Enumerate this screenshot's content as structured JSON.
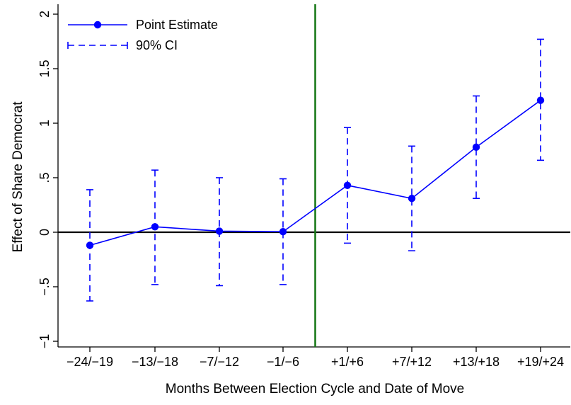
{
  "chart_data": {
    "type": "line",
    "categories": [
      "−24/−19",
      "−13/−18",
      "−7/−12",
      "−1/−6",
      "+1/+6",
      "+7/+12",
      "+13/+18",
      "+19/+24"
    ],
    "series": [
      {
        "name": "Point Estimate",
        "values": [
          -0.12,
          0.05,
          0.01,
          0.005,
          0.43,
          0.31,
          0.78,
          1.21
        ]
      }
    ],
    "ci": {
      "name": "90% CI",
      "lower": [
        -0.63,
        -0.48,
        -0.49,
        -0.48,
        -0.1,
        -0.17,
        0.31,
        0.66
      ],
      "upper": [
        0.39,
        0.57,
        0.5,
        0.49,
        0.96,
        0.79,
        1.25,
        1.77
      ]
    },
    "xlabel": "Months Between Election Cycle and Date of Move",
    "ylabel": "Effect of Share Democrat",
    "ylim": [
      -1.1,
      2.05
    ],
    "yticks": [
      -1,
      -0.5,
      0,
      0.5,
      1,
      1.5,
      2
    ],
    "ytick_labels": [
      "−1",
      "−.5",
      "0",
      ".5",
      "1",
      "1.5",
      "2"
    ],
    "reference_hline": 0,
    "reference_vline_between": [
      3,
      4
    ],
    "legend_position": "top-left",
    "grid": false,
    "colors": {
      "series": "#0000ff",
      "zero_line": "#000000",
      "vertical_line": "#1a7a1a",
      "axis": "#000000"
    }
  }
}
